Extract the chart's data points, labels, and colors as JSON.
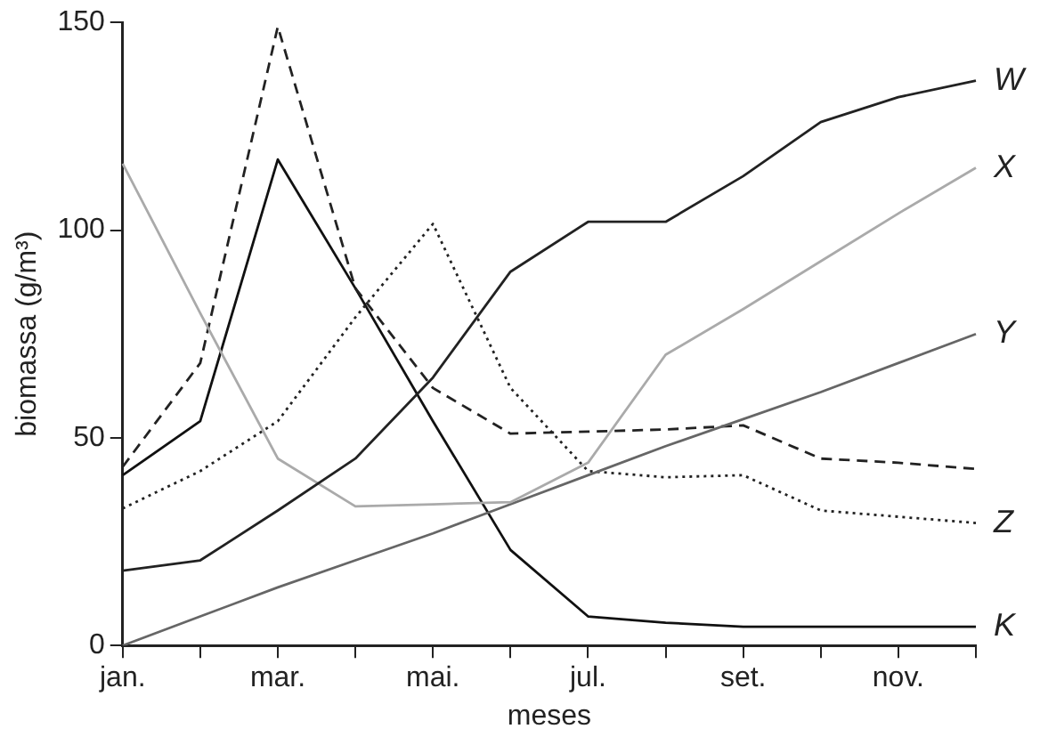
{
  "chart_data": {
    "type": "line",
    "xlabel": "meses",
    "ylabel": "biomassa (g/m³)",
    "categories": [
      "jan.",
      null,
      "mar.",
      null,
      "mai.",
      null,
      "jul.",
      null,
      "set.",
      null,
      "nov.",
      null
    ],
    "ylim": [
      0,
      150
    ],
    "yticks": [
      0,
      50,
      100,
      150
    ],
    "grid": false,
    "legend": false,
    "marker": "none",
    "series": [
      {
        "name": "W",
        "color": "#222222",
        "line_style": "solid",
        "values": [
          18,
          20.5,
          32.5,
          45,
          64.5,
          90,
          102,
          102,
          113,
          126,
          132,
          136
        ]
      },
      {
        "name": "X",
        "color": "#aaaaaa",
        "line_style": "solid",
        "values": [
          116,
          80,
          45,
          33.5,
          34,
          34.5,
          44,
          70,
          81,
          92.5,
          104,
          115
        ]
      },
      {
        "name": "Y",
        "color": "#666666",
        "line_style": "solid",
        "values": [
          0,
          7,
          14,
          20.5,
          27,
          34,
          41,
          48,
          54.5,
          61,
          68,
          75
        ]
      },
      {
        "color": "#222222",
        "line_style": "dashed",
        "values": [
          43,
          68,
          149,
          86,
          62,
          51,
          51.5,
          52,
          53,
          45,
          44,
          42.5
        ]
      },
      {
        "name": "Z",
        "color": "#222222",
        "line_style": "dotted",
        "values": [
          33,
          42,
          54,
          79,
          101.5,
          62,
          42,
          40.5,
          41,
          32.5,
          31,
          29.5
        ]
      },
      {
        "name": "K",
        "color": "#111111",
        "line_style": "solid",
        "values": [
          41,
          54,
          117,
          86,
          54,
          23,
          7,
          5.5,
          4.5,
          4.5,
          4.5,
          4.5
        ]
      }
    ]
  }
}
